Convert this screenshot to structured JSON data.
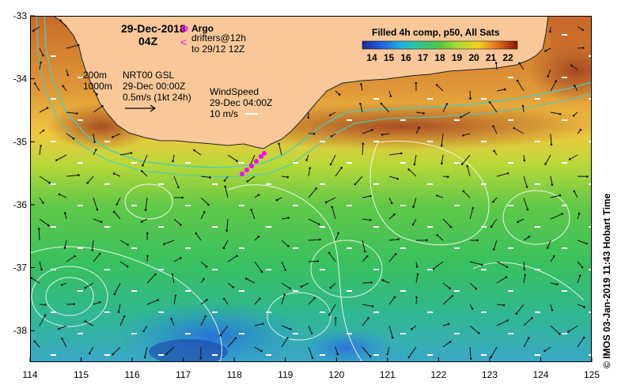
{
  "title": {
    "date": "29-Dec-2018",
    "time": "04Z"
  },
  "legend": {
    "argo_label": "Argo",
    "drifters_label": "drifters@12h",
    "drifters_sub": "to 29/12 12Z",
    "colorbar_title": "Filled 4h comp, p50, All Sats",
    "colorbar_ticks": [
      "14",
      "15",
      "16",
      "17",
      "18",
      "19",
      "20",
      "21",
      "22"
    ]
  },
  "annotations": {
    "depth_200": "200m",
    "depth_1000": "1000m",
    "current_source": "NRT00 GSL",
    "current_date": "29-Dec 00:00Z",
    "current_scale": "0.5m/s (1kt 24h)",
    "wind_title": "WindSpeed",
    "wind_date": "29-Dec 04:00Z",
    "wind_scale": "10 m/s"
  },
  "axes": {
    "x_ticks": [
      "114",
      "115",
      "116",
      "117",
      "118",
      "119",
      "120",
      "121",
      "122",
      "123",
      "124",
      "125"
    ],
    "y_ticks": [
      "-33",
      "-34",
      "-35",
      "-36",
      "-37",
      "-38"
    ],
    "x_range": [
      114,
      125
    ],
    "y_range": [
      -33,
      -38.5
    ]
  },
  "credit": "© IMOS 03-Jan-2019 11:43 Hobart Time",
  "colors": {
    "land": "#f8c89a",
    "contour_cyan": "#40d0c8",
    "argo": "#ff00ff",
    "cb_low": "#1a2a9a",
    "cb_high": "#8a1408"
  }
}
